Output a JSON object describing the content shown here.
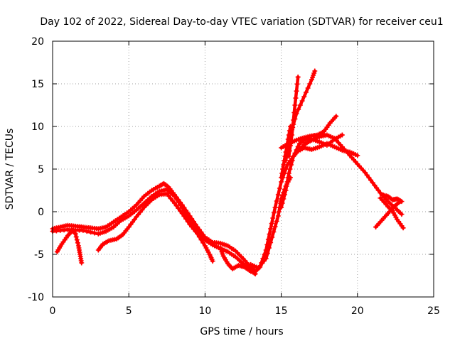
{
  "chart_data": {
    "type": "line",
    "title": "Day 102 of 2022, Sidereal Day-to-day VTEC variation (SDTVAR) for receiver ceu1",
    "xlabel": "GPS time / hours",
    "ylabel": "SDTVAR / TECUs",
    "xlim": [
      0,
      25
    ],
    "ylim": [
      -10,
      20
    ],
    "xticks": [
      0,
      5,
      10,
      15,
      20,
      25
    ],
    "yticks": [
      -10,
      -5,
      0,
      5,
      10,
      15,
      20
    ],
    "grid": true,
    "marker": "plus",
    "color": "#ff0000",
    "series": [
      {
        "name": "main-trace",
        "points": [
          [
            0.0,
            -2.0
          ],
          [
            0.5,
            -1.8
          ],
          [
            1.0,
            -1.6
          ],
          [
            1.5,
            -1.7
          ],
          [
            2.0,
            -1.8
          ],
          [
            2.5,
            -1.9
          ],
          [
            3.0,
            -2.0
          ],
          [
            3.5,
            -1.8
          ],
          [
            4.0,
            -1.2
          ],
          [
            4.5,
            -0.6
          ],
          [
            5.0,
            0.0
          ],
          [
            5.5,
            0.8
          ],
          [
            6.0,
            1.8
          ],
          [
            6.5,
            2.5
          ],
          [
            7.0,
            3.0
          ],
          [
            7.3,
            3.3
          ],
          [
            7.6,
            2.9
          ],
          [
            8.0,
            2.0
          ],
          [
            8.5,
            0.8
          ],
          [
            9.0,
            -0.5
          ],
          [
            9.5,
            -1.8
          ],
          [
            10.0,
            -3.0
          ],
          [
            10.5,
            -3.6
          ],
          [
            11.0,
            -3.7
          ],
          [
            11.5,
            -4.0
          ],
          [
            12.0,
            -4.6
          ],
          [
            12.5,
            -5.5
          ],
          [
            13.0,
            -6.5
          ],
          [
            13.3,
            -7.0
          ],
          [
            13.6,
            -6.5
          ],
          [
            14.0,
            -4.5
          ],
          [
            14.3,
            -2.0
          ],
          [
            14.6,
            0.5
          ],
          [
            15.0,
            3.5
          ],
          [
            15.4,
            5.5
          ],
          [
            15.8,
            6.5
          ],
          [
            16.2,
            7.3
          ],
          [
            16.6,
            8.0
          ],
          [
            17.0,
            8.4
          ],
          [
            17.5,
            8.8
          ],
          [
            18.0,
            9.0
          ],
          [
            18.5,
            8.6
          ],
          [
            19.0,
            7.6
          ],
          [
            19.5,
            6.6
          ],
          [
            20.0,
            5.6
          ],
          [
            20.5,
            4.6
          ],
          [
            21.0,
            3.4
          ],
          [
            21.5,
            2.2
          ],
          [
            22.0,
            1.2
          ],
          [
            22.5,
            0.4
          ],
          [
            22.9,
            -0.3
          ]
        ]
      },
      {
        "name": "trace-2",
        "points": [
          [
            0.0,
            -2.3
          ],
          [
            1.0,
            -2.1
          ],
          [
            2.0,
            -2.2
          ],
          [
            3.0,
            -2.6
          ],
          [
            3.5,
            -2.3
          ],
          [
            4.0,
            -1.8
          ],
          [
            4.5,
            -1.0
          ],
          [
            5.0,
            -0.5
          ],
          [
            5.5,
            0.2
          ],
          [
            6.0,
            1.0
          ],
          [
            6.5,
            1.8
          ],
          [
            7.0,
            2.4
          ],
          [
            7.5,
            2.6
          ],
          [
            8.0,
            1.8
          ],
          [
            8.5,
            0.5
          ],
          [
            9.0,
            -1.0
          ],
          [
            9.5,
            -2.2
          ],
          [
            10.0,
            -3.3
          ],
          [
            10.5,
            -3.9
          ],
          [
            11.0,
            -4.3
          ],
          [
            11.5,
            -4.7
          ],
          [
            12.0,
            -5.3
          ],
          [
            12.5,
            -6.1
          ],
          [
            13.0,
            -6.9
          ],
          [
            13.3,
            -7.3
          ]
        ]
      },
      {
        "name": "trace-3",
        "points": [
          [
            0.3,
            -4.7
          ],
          [
            0.6,
            -3.8
          ],
          [
            1.0,
            -2.8
          ],
          [
            1.3,
            -2.2
          ],
          [
            1.5,
            -2.6
          ],
          [
            1.7,
            -4.0
          ],
          [
            1.8,
            -5.0
          ],
          [
            1.9,
            -6.0
          ]
        ]
      },
      {
        "name": "trace-4",
        "points": [
          [
            3.0,
            -4.5
          ],
          [
            3.3,
            -3.8
          ],
          [
            3.7,
            -3.4
          ],
          [
            4.2,
            -3.2
          ],
          [
            4.6,
            -2.7
          ],
          [
            5.0,
            -1.8
          ],
          [
            5.5,
            -0.6
          ],
          [
            6.0,
            0.5
          ],
          [
            6.5,
            1.4
          ],
          [
            7.0,
            2.0
          ],
          [
            7.5,
            2.1
          ],
          [
            8.0,
            1.0
          ],
          [
            8.5,
            -0.2
          ],
          [
            9.0,
            -1.5
          ],
          [
            9.5,
            -2.6
          ],
          [
            10.0,
            -4.0
          ],
          [
            10.3,
            -5.0
          ],
          [
            10.5,
            -5.8
          ]
        ]
      },
      {
        "name": "trace-5",
        "points": [
          [
            11.0,
            -4.2
          ],
          [
            11.2,
            -5.2
          ],
          [
            11.5,
            -6.1
          ],
          [
            11.8,
            -6.7
          ],
          [
            12.2,
            -6.3
          ],
          [
            12.6,
            -6.5
          ],
          [
            13.0,
            -7.0
          ]
        ]
      },
      {
        "name": "trace-6",
        "points": [
          [
            13.0,
            -6.2
          ],
          [
            13.5,
            -6.6
          ],
          [
            14.0,
            -5.5
          ],
          [
            14.4,
            -3.0
          ],
          [
            14.8,
            -0.5
          ],
          [
            15.0,
            1.5
          ],
          [
            15.3,
            3.0
          ],
          [
            15.6,
            4.0
          ]
        ]
      },
      {
        "name": "trace-7",
        "points": [
          [
            15.0,
            0.5
          ],
          [
            15.3,
            2.5
          ],
          [
            15.5,
            4.5
          ],
          [
            15.8,
            6.5
          ],
          [
            16.2,
            8.0
          ],
          [
            16.6,
            8.5
          ],
          [
            17.0,
            8.5
          ],
          [
            17.5,
            8.2
          ],
          [
            18.0,
            7.8
          ],
          [
            18.5,
            8.5
          ],
          [
            19.0,
            9.0
          ]
        ]
      },
      {
        "name": "trace-8",
        "points": [
          [
            15.0,
            7.5
          ],
          [
            15.5,
            8.0
          ],
          [
            16.0,
            8.4
          ],
          [
            16.5,
            8.7
          ],
          [
            17.0,
            8.9
          ],
          [
            17.4,
            9.0
          ],
          [
            17.8,
            9.4
          ],
          [
            18.2,
            10.4
          ],
          [
            18.6,
            11.2
          ]
        ]
      },
      {
        "name": "trace-9",
        "points": [
          [
            16.0,
            7.0
          ],
          [
            16.5,
            7.5
          ],
          [
            17.0,
            7.3
          ],
          [
            17.5,
            7.6
          ],
          [
            18.0,
            8.0
          ],
          [
            18.5,
            7.6
          ],
          [
            19.0,
            7.2
          ],
          [
            19.5,
            7.0
          ],
          [
            20.0,
            6.6
          ]
        ]
      },
      {
        "name": "trace-10",
        "points": [
          [
            15.5,
            6.5
          ],
          [
            15.7,
            9.0
          ],
          [
            15.9,
            12.5
          ],
          [
            16.1,
            15.8
          ]
        ]
      },
      {
        "name": "trace-11",
        "points": [
          [
            15.3,
            6.0
          ],
          [
            15.6,
            9.0
          ],
          [
            16.0,
            11.5
          ],
          [
            16.5,
            13.5
          ],
          [
            17.0,
            15.5
          ],
          [
            17.2,
            16.5
          ]
        ]
      },
      {
        "name": "trace-12",
        "points": [
          [
            15.0,
            4.0
          ],
          [
            15.2,
            6.0
          ],
          [
            15.4,
            8.0
          ],
          [
            15.6,
            10.0
          ]
        ]
      },
      {
        "name": "trace-13",
        "points": [
          [
            21.2,
            -1.8
          ],
          [
            21.6,
            -1.0
          ],
          [
            22.0,
            -0.2
          ],
          [
            22.4,
            0.6
          ],
          [
            22.8,
            1.2
          ]
        ]
      },
      {
        "name": "trace-14",
        "points": [
          [
            21.6,
            2.0
          ],
          [
            22.0,
            1.8
          ],
          [
            22.3,
            1.4
          ],
          [
            22.6,
            1.5
          ],
          [
            22.9,
            1.2
          ]
        ]
      },
      {
        "name": "trace-15",
        "points": [
          [
            21.5,
            1.6
          ],
          [
            22.0,
            0.6
          ],
          [
            22.3,
            0.1
          ],
          [
            22.6,
            -0.9
          ],
          [
            23.0,
            -1.9
          ]
        ]
      }
    ]
  }
}
